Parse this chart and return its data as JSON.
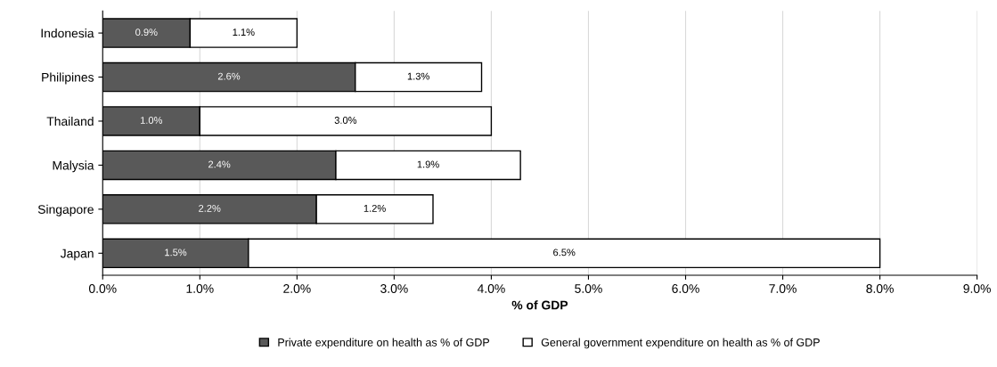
{
  "chart_data": {
    "type": "bar",
    "orientation": "horizontal",
    "stacked": true,
    "xlabel": "% of GDP",
    "categories": [
      "Indonesia",
      "Philipines",
      "Thailand",
      "Malysia",
      "Singapore",
      "Japan"
    ],
    "series": [
      {
        "name": "Private expenditure on health as % of GDP",
        "color": "#595959",
        "values": [
          0.9,
          2.6,
          1.0,
          2.4,
          2.2,
          1.5
        ],
        "value_labels": [
          "0.9%",
          "2.6%",
          "1.0%",
          "2.4%",
          "2.2%",
          "1.5%"
        ]
      },
      {
        "name": "General government expenditure on health as % of GDP",
        "color": "#ffffff",
        "values": [
          1.1,
          1.3,
          3.0,
          1.9,
          1.2,
          6.5
        ],
        "value_labels": [
          "1.1%",
          "1.3%",
          "3.0%",
          "1.9%",
          "1.2%",
          "6.5%"
        ]
      }
    ],
    "xlim": [
      0,
      9
    ],
    "xticks": [
      {
        "value": 0,
        "label": "0.0%"
      },
      {
        "value": 1,
        "label": "1.0%"
      },
      {
        "value": 2,
        "label": "2.0%"
      },
      {
        "value": 3,
        "label": "3.0%"
      },
      {
        "value": 4,
        "label": "4.0%"
      },
      {
        "value": 5,
        "label": "5.0%"
      },
      {
        "value": 6,
        "label": "6.0%"
      },
      {
        "value": 7,
        "label": "7.0%"
      },
      {
        "value": 8,
        "label": "8.0%"
      },
      {
        "value": 9,
        "label": "9.0%"
      }
    ],
    "grid": "x",
    "legend": "bottom"
  }
}
